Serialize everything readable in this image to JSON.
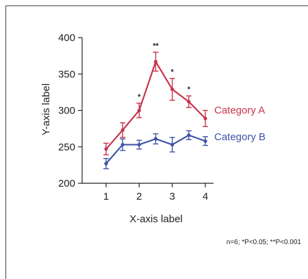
{
  "chart_data": {
    "type": "line",
    "title": "",
    "xlabel": "X-axis label",
    "ylabel": "Y-axis label",
    "xlim": [
      0.7,
      4.2
    ],
    "ylim": [
      200,
      400
    ],
    "xticks": [
      "1",
      "2",
      "3",
      "4"
    ],
    "yticks": [
      "200",
      "250",
      "300",
      "350",
      "400"
    ],
    "grid": false,
    "legend_placement": "right, beside line ends",
    "series": [
      {
        "name": "Category A",
        "color": "#c8334a",
        "x": [
          1,
          1.5,
          2,
          2.5,
          3,
          3.5,
          4
        ],
        "y": [
          247,
          273,
          300,
          367,
          329,
          312,
          289
        ],
        "err": [
          8,
          10,
          10,
          13,
          15,
          8,
          11
        ]
      },
      {
        "name": "Category B",
        "color": "#3f53a6",
        "x": [
          1,
          1.5,
          2,
          2.5,
          3,
          3.5,
          4
        ],
        "y": [
          227,
          253,
          253,
          261,
          253,
          266,
          258
        ],
        "err": [
          7,
          8,
          6,
          7,
          10,
          6,
          6
        ]
      }
    ],
    "significance": [
      {
        "x": 2,
        "label": "*"
      },
      {
        "x": 2.5,
        "label": "**"
      },
      {
        "x": 3,
        "label": "*"
      },
      {
        "x": 3.5,
        "label": "*"
      }
    ],
    "footnote": "n=6; *P<0.05; **P<0.001"
  }
}
